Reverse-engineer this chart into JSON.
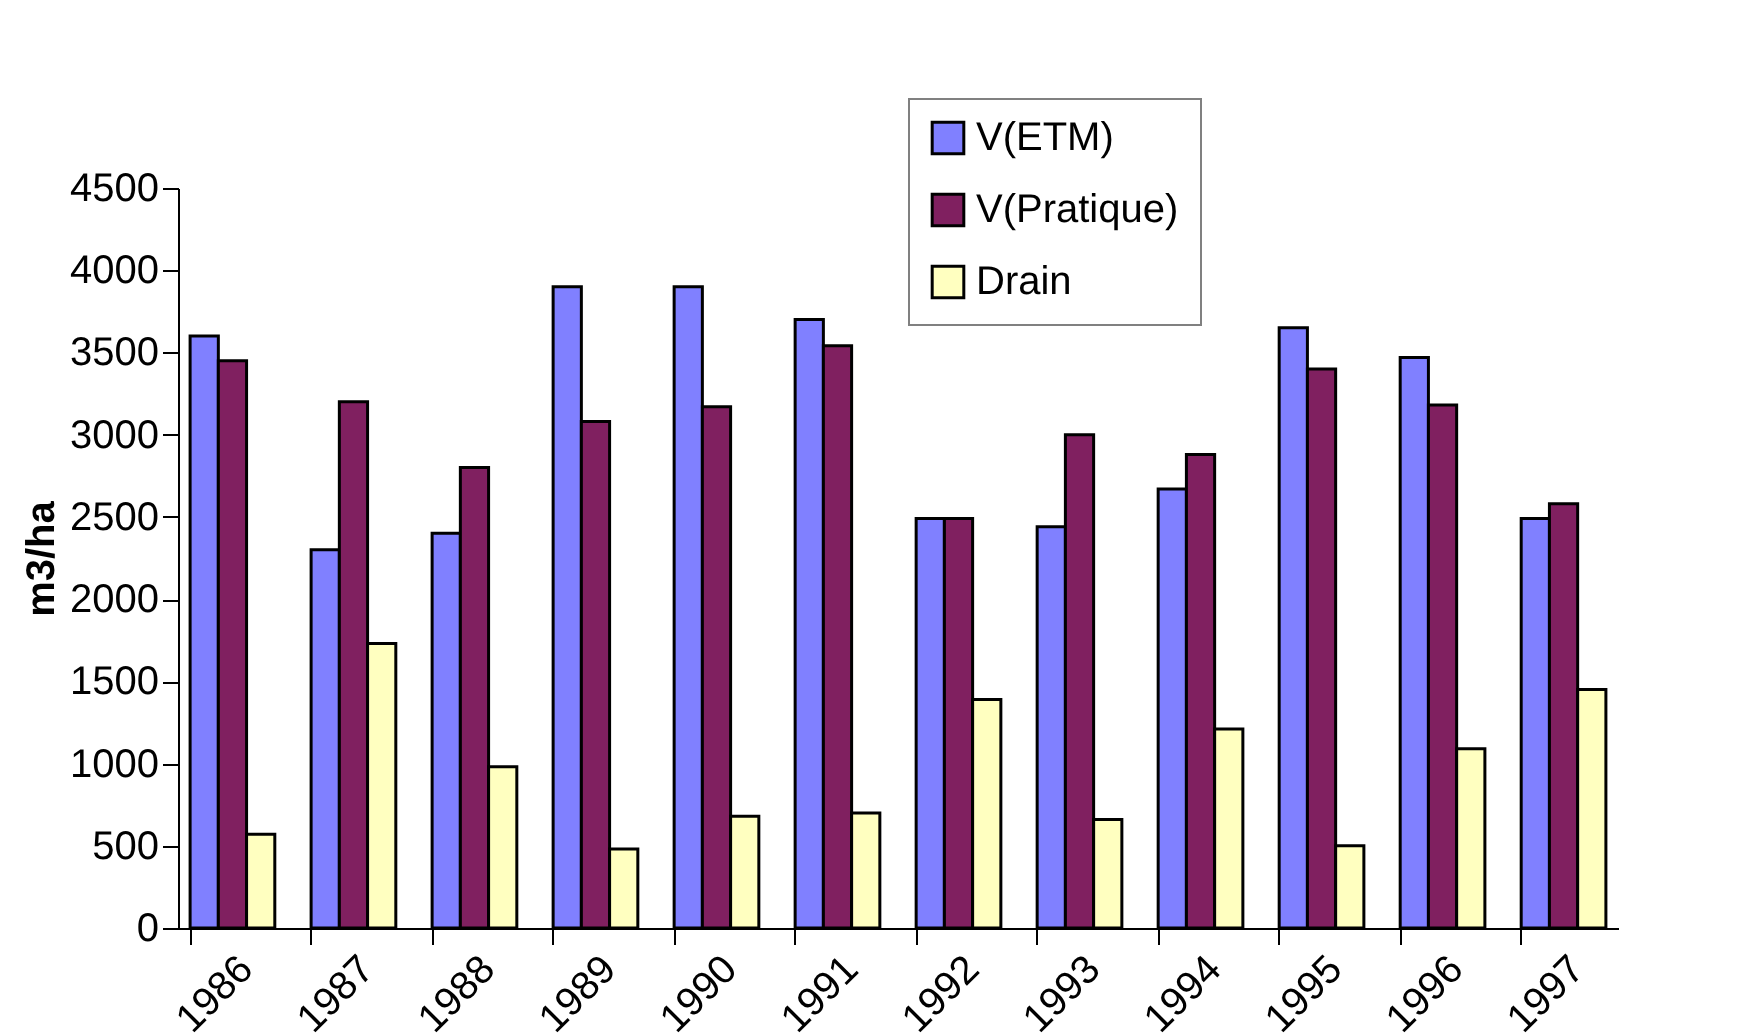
{
  "chart_data": {
    "type": "bar",
    "ylabel": "m3/ha",
    "categories": [
      "1986",
      "1987",
      "1988",
      "1989",
      "1990",
      "1991",
      "1992",
      "1993",
      "1994",
      "1995",
      "1996",
      "1997"
    ],
    "series": [
      {
        "name": "V(ETM)",
        "color": "#8080ff",
        "values": [
          3600,
          2300,
          2400,
          3900,
          3900,
          3700,
          2490,
          2440,
          2670,
          3650,
          3470,
          2490
        ]
      },
      {
        "name": "V(Pratique)",
        "color": "#802060",
        "values": [
          3450,
          3200,
          2800,
          3080,
          3170,
          3540,
          2490,
          3000,
          2880,
          3400,
          3180,
          2580
        ]
      },
      {
        "name": "Drain",
        "color": "#ffffc0",
        "values": [
          570,
          1730,
          980,
          480,
          680,
          700,
          1390,
          660,
          1210,
          500,
          1090,
          1450
        ]
      }
    ],
    "ylim": [
      0,
      4500
    ],
    "yticks": [
      0,
      500,
      1000,
      1500,
      2000,
      2500,
      3000,
      3500,
      4000,
      4500
    ],
    "grid": false,
    "legend": "top"
  }
}
